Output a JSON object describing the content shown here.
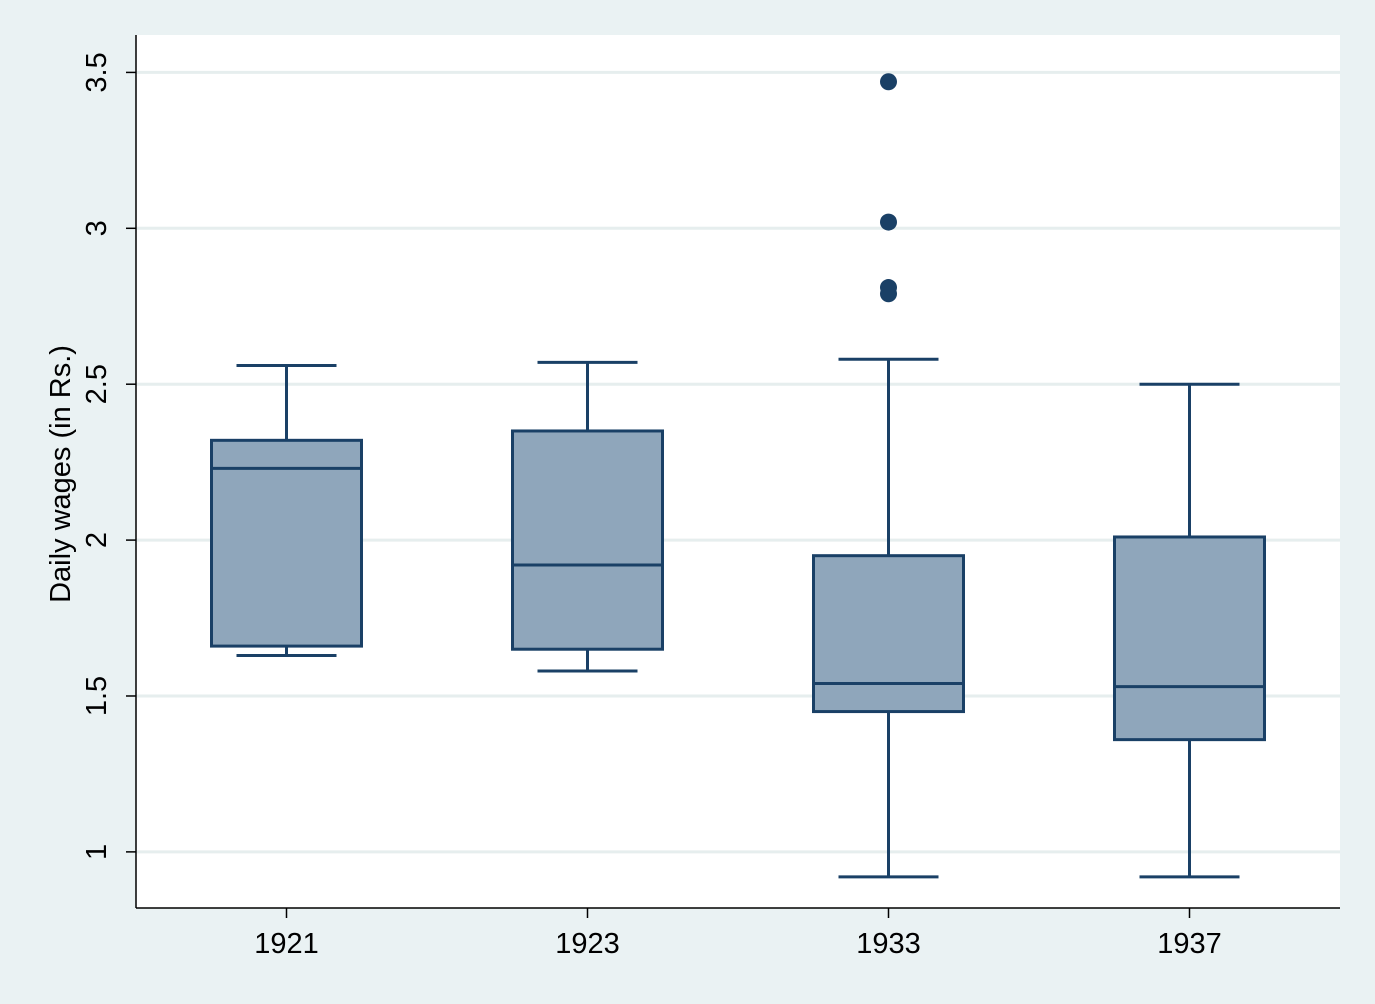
{
  "chart_data": {
    "type": "box",
    "title": "",
    "xlabel": "",
    "ylabel": "Daily wages (in Rs.)",
    "ylim": [
      0.82,
      3.62
    ],
    "yticks": [
      "1",
      "1.5",
      "2",
      "2.5",
      "3",
      "3.5"
    ],
    "grid": true,
    "categories": [
      "1921",
      "1923",
      "1933",
      "1937"
    ],
    "boxes": [
      {
        "category": "1921",
        "whisker_low": 1.63,
        "q1": 1.66,
        "median": 2.23,
        "q3": 2.32,
        "whisker_high": 2.56,
        "outliers": []
      },
      {
        "category": "1923",
        "whisker_low": 1.58,
        "q1": 1.65,
        "median": 1.92,
        "q3": 2.35,
        "whisker_high": 2.57,
        "outliers": []
      },
      {
        "category": "1933",
        "whisker_low": 0.92,
        "q1": 1.45,
        "median": 1.54,
        "q3": 1.95,
        "whisker_high": 2.58,
        "outliers": [
          3.47,
          3.02,
          2.81,
          2.79
        ]
      },
      {
        "category": "1937",
        "whisker_low": 0.92,
        "q1": 1.36,
        "median": 1.53,
        "q3": 2.01,
        "whisker_high": 2.5,
        "outliers": []
      }
    ],
    "colors": {
      "box_fill": "#8fa6bb",
      "line": "#1a4066",
      "outlier": "#1a4066",
      "grid": "#e6eeee",
      "plot_bg": "#ffffff",
      "page_bg": "#eaf2f3"
    }
  }
}
